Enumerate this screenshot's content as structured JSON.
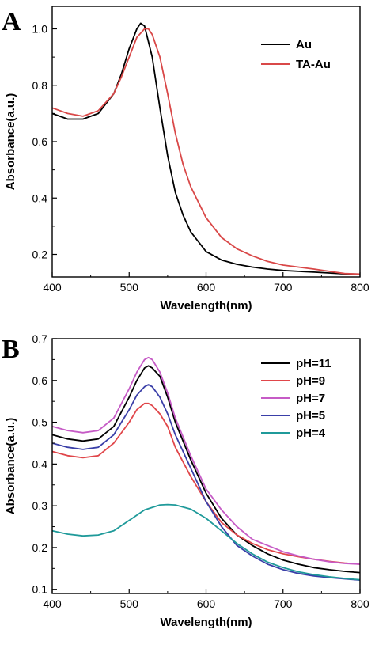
{
  "chart_data": [
    {
      "panel_label": "A",
      "type": "line",
      "xlabel": "Wavelength(nm)",
      "ylabel": "Absorbance(a.u.)",
      "xlim": [
        400,
        800
      ],
      "ylim": [
        0.12,
        1.08
      ],
      "xticks": [
        400,
        500,
        600,
        700,
        800
      ],
      "yticks": [
        0.2,
        0.4,
        0.6,
        0.8,
        1.0
      ],
      "xtick_labels": [
        "400",
        "500",
        "600",
        "700",
        "800"
      ],
      "ytick_labels": [
        "0.2",
        "0.4",
        "0.6",
        "0.8",
        "1.0"
      ],
      "legend_position": "top-right",
      "grid": false,
      "series": [
        {
          "name": "Au",
          "color": "#000000",
          "x": [
            400,
            420,
            440,
            460,
            480,
            490,
            500,
            510,
            515,
            520,
            530,
            540,
            550,
            560,
            570,
            580,
            600,
            620,
            640,
            660,
            680,
            700,
            720,
            740,
            760,
            780,
            800
          ],
          "y": [
            0.7,
            0.68,
            0.68,
            0.7,
            0.77,
            0.84,
            0.93,
            1.0,
            1.02,
            1.01,
            0.9,
            0.72,
            0.55,
            0.42,
            0.34,
            0.28,
            0.21,
            0.18,
            0.165,
            0.155,
            0.148,
            0.143,
            0.14,
            0.137,
            0.134,
            0.131,
            0.13
          ]
        },
        {
          "name": "TA-Au",
          "color": "#d94848",
          "x": [
            400,
            420,
            440,
            460,
            480,
            490,
            500,
            510,
            520,
            525,
            530,
            540,
            550,
            560,
            570,
            580,
            600,
            620,
            640,
            660,
            680,
            700,
            720,
            740,
            760,
            780,
            800
          ],
          "y": [
            0.72,
            0.7,
            0.69,
            0.71,
            0.77,
            0.83,
            0.9,
            0.97,
            1.0,
            1.0,
            0.98,
            0.9,
            0.77,
            0.63,
            0.52,
            0.44,
            0.33,
            0.26,
            0.22,
            0.195,
            0.175,
            0.162,
            0.155,
            0.148,
            0.14,
            0.132,
            0.13
          ]
        }
      ]
    },
    {
      "panel_label": "B",
      "type": "line",
      "xlabel": "Wavelength(nm)",
      "ylabel": "Absorbance(a.u.)",
      "xlim": [
        400,
        800
      ],
      "ylim": [
        0.09,
        0.7
      ],
      "xticks": [
        400,
        500,
        600,
        700,
        800
      ],
      "yticks": [
        0.1,
        0.2,
        0.3,
        0.4,
        0.5,
        0.6,
        0.7
      ],
      "xtick_labels": [
        "400",
        "500",
        "600",
        "700",
        "800"
      ],
      "ytick_labels": [
        "0.1",
        "0.2",
        "0.3",
        "0.4",
        "0.5",
        "0.6",
        "0.7"
      ],
      "legend_position": "top-right",
      "grid": false,
      "series": [
        {
          "name": "pH=11",
          "color": "#000000",
          "x": [
            400,
            420,
            440,
            460,
            480,
            500,
            510,
            520,
            525,
            530,
            540,
            550,
            560,
            580,
            600,
            620,
            640,
            660,
            680,
            700,
            720,
            740,
            760,
            780,
            800
          ],
          "y": [
            0.47,
            0.46,
            0.455,
            0.46,
            0.49,
            0.56,
            0.6,
            0.63,
            0.635,
            0.63,
            0.61,
            0.56,
            0.5,
            0.41,
            0.33,
            0.27,
            0.23,
            0.205,
            0.185,
            0.17,
            0.16,
            0.152,
            0.147,
            0.143,
            0.14
          ]
        },
        {
          "name": "pH=9",
          "color": "#e0464a",
          "x": [
            400,
            420,
            440,
            460,
            480,
            500,
            510,
            520,
            525,
            530,
            540,
            550,
            560,
            580,
            600,
            620,
            640,
            660,
            680,
            700,
            720,
            740,
            760,
            780,
            800
          ],
          "y": [
            0.43,
            0.42,
            0.415,
            0.42,
            0.45,
            0.5,
            0.53,
            0.545,
            0.545,
            0.54,
            0.52,
            0.49,
            0.44,
            0.37,
            0.31,
            0.26,
            0.23,
            0.21,
            0.195,
            0.185,
            0.178,
            0.172,
            0.167,
            0.163,
            0.16
          ]
        },
        {
          "name": "pH=7",
          "color": "#c65bc6",
          "x": [
            400,
            420,
            440,
            460,
            480,
            500,
            510,
            520,
            525,
            530,
            540,
            550,
            560,
            580,
            600,
            620,
            640,
            660,
            680,
            700,
            720,
            740,
            760,
            780,
            800
          ],
          "y": [
            0.49,
            0.48,
            0.475,
            0.48,
            0.51,
            0.58,
            0.62,
            0.65,
            0.655,
            0.65,
            0.62,
            0.57,
            0.51,
            0.42,
            0.34,
            0.29,
            0.25,
            0.22,
            0.205,
            0.19,
            0.18,
            0.172,
            0.166,
            0.162,
            0.16
          ]
        },
        {
          "name": "pH=5",
          "color": "#3a3fa8",
          "x": [
            400,
            420,
            440,
            460,
            480,
            500,
            510,
            520,
            525,
            530,
            540,
            550,
            560,
            580,
            600,
            620,
            640,
            660,
            680,
            700,
            720,
            740,
            760,
            780,
            800
          ],
          "y": [
            0.45,
            0.44,
            0.435,
            0.44,
            0.47,
            0.53,
            0.565,
            0.585,
            0.59,
            0.585,
            0.56,
            0.52,
            0.47,
            0.39,
            0.31,
            0.25,
            0.205,
            0.18,
            0.16,
            0.147,
            0.138,
            0.132,
            0.128,
            0.125,
            0.122
          ]
        },
        {
          "name": "pH=4",
          "color": "#1f9a9a",
          "x": [
            400,
            420,
            440,
            460,
            480,
            500,
            520,
            540,
            550,
            560,
            580,
            600,
            620,
            640,
            660,
            680,
            700,
            720,
            740,
            760,
            780,
            800
          ],
          "y": [
            0.24,
            0.232,
            0.228,
            0.23,
            0.24,
            0.265,
            0.29,
            0.302,
            0.303,
            0.302,
            0.292,
            0.27,
            0.24,
            0.21,
            0.185,
            0.165,
            0.152,
            0.142,
            0.135,
            0.13,
            0.126,
            0.123
          ]
        }
      ]
    }
  ]
}
